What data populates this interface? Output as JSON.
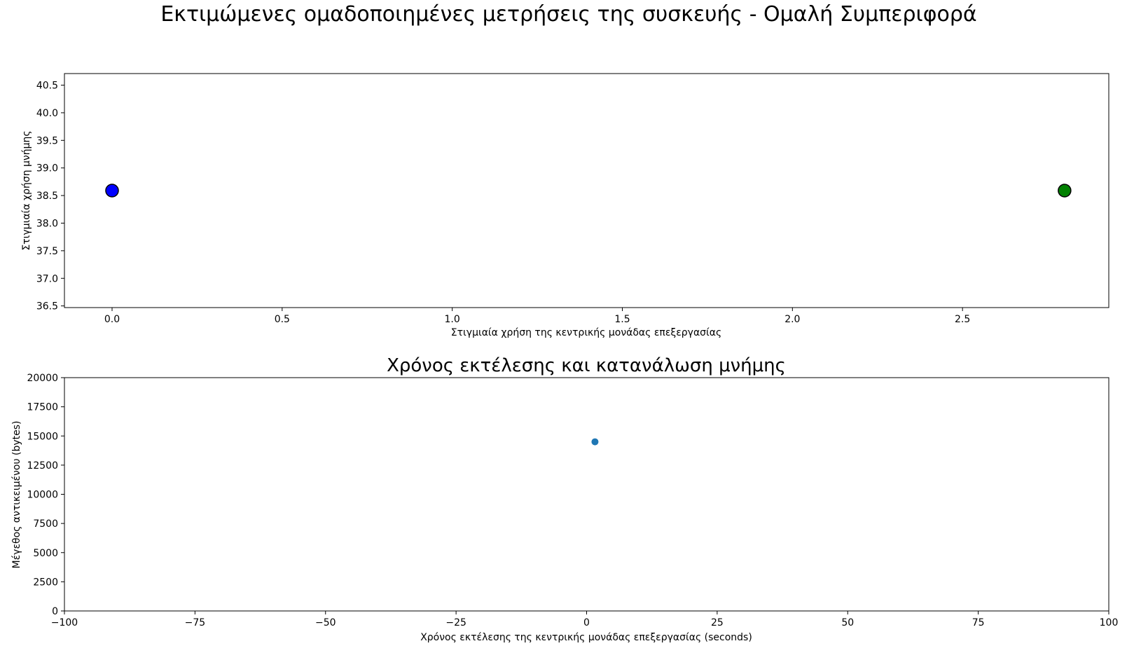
{
  "figure": {
    "suptitle": "Εκτιμώμενες ομαδοποιημένες μετρήσεις της συσκευής - Ομαλή Συμπεριφορά"
  },
  "chart_data": [
    {
      "type": "scatter",
      "title": "",
      "xlabel": "Στιγμιαία χρήση της κεντρικής μονάδας επεξεργασίας",
      "ylabel": "Στιγμιαία χρήση μνήμης",
      "xlim": [
        -0.14,
        2.93
      ],
      "ylim": [
        36.47,
        40.71
      ],
      "xticks": [
        0.0,
        0.5,
        1.0,
        1.5,
        2.0,
        2.5
      ],
      "xtick_labels": [
        "0.0",
        "0.5",
        "1.0",
        "1.5",
        "2.0",
        "2.5"
      ],
      "yticks": [
        36.5,
        37.0,
        37.5,
        38.0,
        38.5,
        39.0,
        39.5,
        40.0,
        40.5
      ],
      "ytick_labels": [
        "36.5",
        "37.0",
        "37.5",
        "38.0",
        "38.5",
        "39.0",
        "39.5",
        "40.0",
        "40.5"
      ],
      "grid": false,
      "points": [
        {
          "x": 0.0,
          "y": 38.59,
          "color": "#0000ff"
        },
        {
          "x": 2.8,
          "y": 38.59,
          "color": "#008000"
        }
      ],
      "marker_edge_color": "#000000"
    },
    {
      "type": "scatter",
      "title": "Χρόνος εκτέλεσης και κατανάλωση μνήμης",
      "xlabel": "Χρόνος εκτέλεσης της κεντρικής μονάδας επεξεργασίας (seconds)",
      "ylabel": "Μέγεθος αντικειμένου (bytes)",
      "xlim": [
        -100,
        100
      ],
      "ylim": [
        0,
        20000
      ],
      "xticks": [
        -100,
        -75,
        -50,
        -25,
        0,
        25,
        50,
        75,
        100
      ],
      "xtick_labels": [
        "−100",
        "−75",
        "−50",
        "−25",
        "0",
        "25",
        "50",
        "75",
        "100"
      ],
      "yticks": [
        0,
        2500,
        5000,
        7500,
        10000,
        12500,
        15000,
        17500,
        20000
      ],
      "ytick_labels": [
        "0",
        "2500",
        "5000",
        "7500",
        "10000",
        "12500",
        "15000",
        "17500",
        "20000"
      ],
      "grid": false,
      "points": [
        {
          "x": 1.6,
          "y": 14500,
          "color": "#1f77b4"
        }
      ]
    }
  ]
}
